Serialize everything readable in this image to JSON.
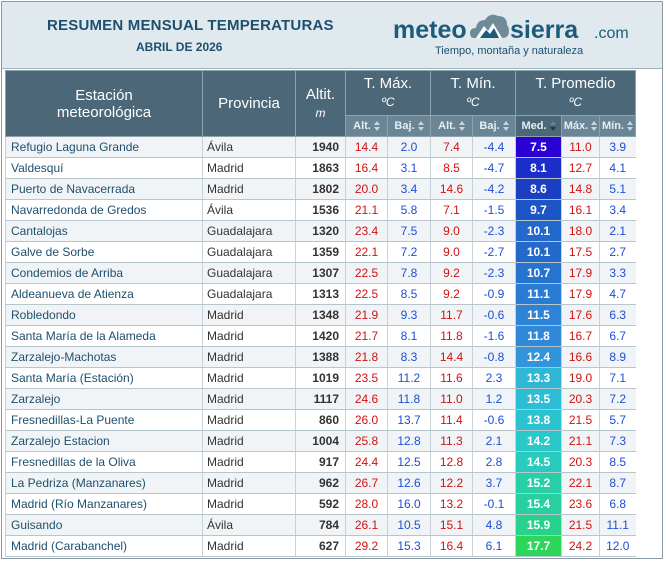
{
  "header": {
    "title": "RESUMEN MENSUAL TEMPERATURAS",
    "subtitle": "ABRIL DE 2026",
    "logo_meteo": "meteo",
    "logo_sierra": "sierra",
    "logo_com": ".com",
    "logo_tagline": "Tiempo, montaña y naturaleza"
  },
  "columns": {
    "station": "Estación meteorológica",
    "province": "Provincia",
    "altitude": "Altit.",
    "altitude_unit": "m",
    "tmax": "T. Máx.",
    "tmin": "T. Mín.",
    "tavg": "T. Promedio",
    "unit_c": "ºC",
    "sub_alt": "Alt.",
    "sub_baj": "Baj.",
    "sub_med": "Med.",
    "sub_max": "Máx.",
    "sub_min": "Mín."
  },
  "colors": {
    "header_bg": "#4b6778",
    "subheader_bg": "#6a8595",
    "high_value": "#d01212",
    "low_value": "#1c4fd6"
  },
  "rows": [
    {
      "station": "Refugio Laguna Grande",
      "province": "Ávila",
      "alt": "1940",
      "max_alt": "14.4",
      "max_baj": "2.0",
      "min_alt": "7.4",
      "min_baj": "-4.4",
      "med": "7.5",
      "pmax": "11.0",
      "pmin": "3.9",
      "color": "#2a00d4"
    },
    {
      "station": "Valdesquí",
      "province": "Madrid",
      "alt": "1863",
      "max_alt": "16.4",
      "max_baj": "3.1",
      "min_alt": "8.5",
      "min_baj": "-4.7",
      "med": "8.1",
      "pmax": "12.7",
      "pmin": "4.1",
      "color": "#1b2ec9"
    },
    {
      "station": "Puerto de Navacerrada",
      "province": "Madrid",
      "alt": "1802",
      "max_alt": "20.0",
      "max_baj": "3.4",
      "min_alt": "14.6",
      "min_baj": "-4.2",
      "med": "8.6",
      "pmax": "14.8",
      "pmin": "5.1",
      "color": "#1b3fc0"
    },
    {
      "station": "Navarredonda de Gredos",
      "province": "Ávila",
      "alt": "1536",
      "max_alt": "21.1",
      "max_baj": "5.8",
      "min_alt": "7.1",
      "min_baj": "-1.5",
      "med": "9.7",
      "pmax": "16.1",
      "pmin": "3.4",
      "color": "#1d56c4"
    },
    {
      "station": "Cantalojas",
      "province": "Guadalajara",
      "alt": "1320",
      "max_alt": "23.4",
      "max_baj": "7.5",
      "min_alt": "9.0",
      "min_baj": "-2.3",
      "med": "10.1",
      "pmax": "18.0",
      "pmin": "2.1",
      "color": "#2369cc"
    },
    {
      "station": "Galve de Sorbe",
      "province": "Guadalajara",
      "alt": "1359",
      "max_alt": "22.1",
      "max_baj": "7.2",
      "min_alt": "9.0",
      "min_baj": "-2.7",
      "med": "10.1",
      "pmax": "17.5",
      "pmin": "2.7",
      "color": "#2369cc"
    },
    {
      "station": "Condemios de Arriba",
      "province": "Guadalajara",
      "alt": "1307",
      "max_alt": "22.5",
      "max_baj": "7.8",
      "min_alt": "9.2",
      "min_baj": "-2.3",
      "med": "10.7",
      "pmax": "17.9",
      "pmin": "3.3",
      "color": "#2773d0"
    },
    {
      "station": "Aldeanueva de Atienza",
      "province": "Guadalajara",
      "alt": "1313",
      "max_alt": "22.5",
      "max_baj": "8.5",
      "min_alt": "9.2",
      "min_baj": "-0.9",
      "med": "11.1",
      "pmax": "17.9",
      "pmin": "4.7",
      "color": "#2a7bd3"
    },
    {
      "station": "Robledondo",
      "province": "Madrid",
      "alt": "1348",
      "max_alt": "21.9",
      "max_baj": "9.3",
      "min_alt": "11.7",
      "min_baj": "-0.6",
      "med": "11.5",
      "pmax": "17.6",
      "pmin": "6.3",
      "color": "#2d83d6"
    },
    {
      "station": "Santa María de la Alameda",
      "province": "Madrid",
      "alt": "1420",
      "max_alt": "21.7",
      "max_baj": "8.1",
      "min_alt": "11.8",
      "min_baj": "-1.6",
      "med": "11.8",
      "pmax": "16.7",
      "pmin": "6.7",
      "color": "#2f88d8"
    },
    {
      "station": "Zarzalejo-Machotas",
      "province": "Madrid",
      "alt": "1388",
      "max_alt": "21.8",
      "max_baj": "8.3",
      "min_alt": "14.4",
      "min_baj": "-0.8",
      "med": "12.4",
      "pmax": "16.6",
      "pmin": "8.9",
      "color": "#3294da"
    },
    {
      "station": "Santa María (Estación)",
      "province": "Madrid",
      "alt": "1019",
      "max_alt": "23.5",
      "max_baj": "11.2",
      "min_alt": "11.6",
      "min_baj": "2.3",
      "med": "13.3",
      "pmax": "19.0",
      "pmin": "7.1",
      "color": "#2fb8d6"
    },
    {
      "station": "Zarzalejo",
      "province": "Madrid",
      "alt": "1117",
      "max_alt": "24.6",
      "max_baj": "11.8",
      "min_alt": "11.0",
      "min_baj": "1.2",
      "med": "13.5",
      "pmax": "20.3",
      "pmin": "7.2",
      "color": "#2dbdd4"
    },
    {
      "station": "Fresnedillas-La Puente",
      "province": "Madrid",
      "alt": "860",
      "max_alt": "26.0",
      "max_baj": "13.7",
      "min_alt": "11.4",
      "min_baj": "-0.6",
      "med": "13.8",
      "pmax": "21.5",
      "pmin": "5.7",
      "color": "#2cc3d1"
    },
    {
      "station": "Zarzalejo Estacion",
      "province": "Madrid",
      "alt": "1004",
      "max_alt": "25.8",
      "max_baj": "12.8",
      "min_alt": "11.3",
      "min_baj": "2.1",
      "med": "14.2",
      "pmax": "21.1",
      "pmin": "7.3",
      "color": "#2ac8c8"
    },
    {
      "station": "Fresnedillas de la Oliva",
      "province": "Madrid",
      "alt": "917",
      "max_alt": "24.4",
      "max_baj": "12.5",
      "min_alt": "12.8",
      "min_baj": "2.8",
      "med": "14.5",
      "pmax": "20.3",
      "pmin": "8.5",
      "color": "#28cbbd"
    },
    {
      "station": "La Pedriza (Manzanares)",
      "province": "Madrid",
      "alt": "962",
      "max_alt": "26.7",
      "max_baj": "12.6",
      "min_alt": "12.2",
      "min_baj": "3.7",
      "med": "15.2",
      "pmax": "22.1",
      "pmin": "8.7",
      "color": "#27cfa6"
    },
    {
      "station": "Madrid (Río Manzanares)",
      "province": "Madrid",
      "alt": "592",
      "max_alt": "28.0",
      "max_baj": "16.0",
      "min_alt": "13.2",
      "min_baj": "-0.1",
      "med": "15.4",
      "pmax": "23.6",
      "pmin": "6.8",
      "color": "#27d09e"
    },
    {
      "station": "Guisando",
      "province": "Ávila",
      "alt": "784",
      "max_alt": "26.1",
      "max_baj": "10.5",
      "min_alt": "15.1",
      "min_baj": "4.8",
      "med": "15.9",
      "pmax": "21.5",
      "pmin": "11.1",
      "color": "#28d28d"
    },
    {
      "station": "Madrid (Carabanchel)",
      "province": "Madrid",
      "alt": "627",
      "max_alt": "29.2",
      "max_baj": "15.3",
      "min_alt": "16.4",
      "min_baj": "6.1",
      "med": "17.7",
      "pmax": "24.2",
      "pmin": "12.0",
      "color": "#2bd65a"
    }
  ]
}
